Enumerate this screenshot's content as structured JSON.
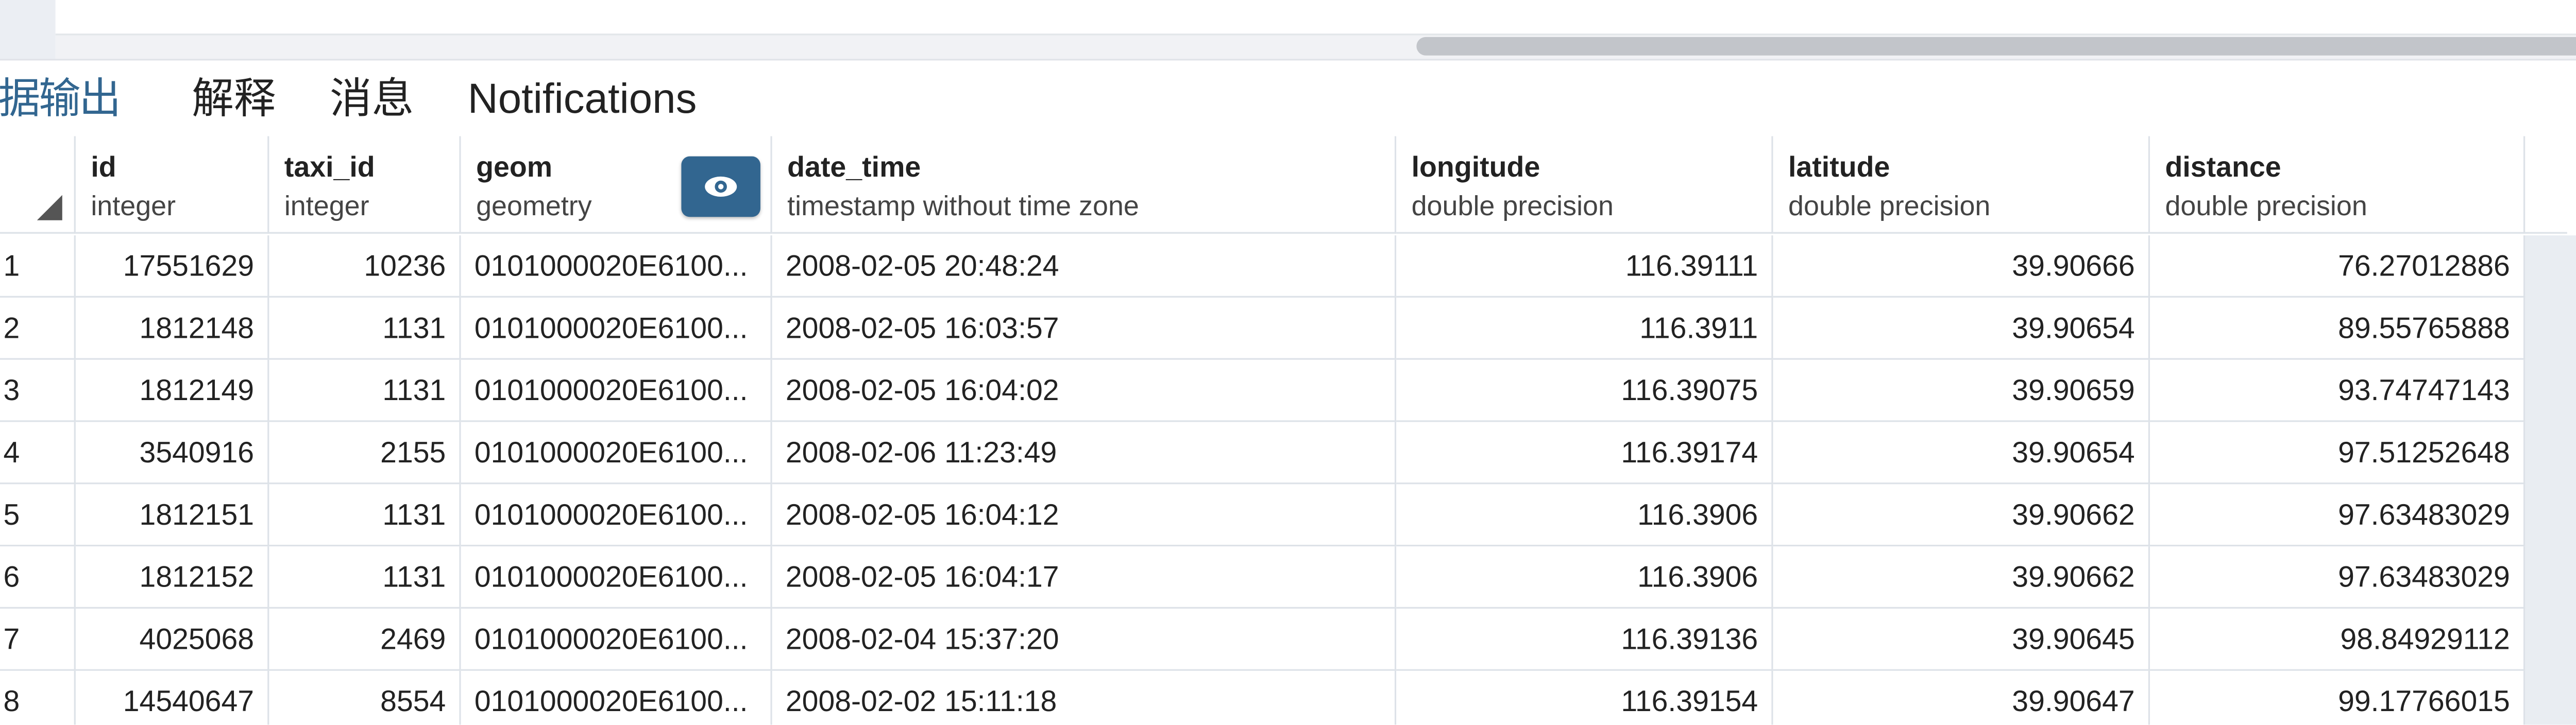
{
  "tabs": [
    {
      "label": "数据输出",
      "active": true
    },
    {
      "label": "解释",
      "active": false
    },
    {
      "label": "消息",
      "active": false
    },
    {
      "label": "Notifications",
      "active": false
    }
  ],
  "colors": {
    "accent": "#326690",
    "border": "#dde2e8",
    "sidebar_bg": "#e9edf2"
  },
  "view_button_icon": "eye-icon",
  "columns": [
    {
      "name": "id",
      "type": "integer"
    },
    {
      "name": "taxi_id",
      "type": "integer"
    },
    {
      "name": "geom",
      "type": "geometry"
    },
    {
      "name": "date_time",
      "type": "timestamp without time zone"
    },
    {
      "name": "longitude",
      "type": "double precision"
    },
    {
      "name": "latitude",
      "type": "double precision"
    },
    {
      "name": "distance",
      "type": "double precision"
    }
  ],
  "rows": [
    {
      "n": "1",
      "id": "17551629",
      "taxi_id": "10236",
      "geom": "0101000020E6100...",
      "date_time": "2008-02-05 20:48:24",
      "longitude": "116.39111",
      "latitude": "39.90666",
      "distance": "76.27012886"
    },
    {
      "n": "2",
      "id": "1812148",
      "taxi_id": "1131",
      "geom": "0101000020E6100...",
      "date_time": "2008-02-05 16:03:57",
      "longitude": "116.3911",
      "latitude": "39.90654",
      "distance": "89.55765888"
    },
    {
      "n": "3",
      "id": "1812149",
      "taxi_id": "1131",
      "geom": "0101000020E6100...",
      "date_time": "2008-02-05 16:04:02",
      "longitude": "116.39075",
      "latitude": "39.90659",
      "distance": "93.74747143"
    },
    {
      "n": "4",
      "id": "3540916",
      "taxi_id": "2155",
      "geom": "0101000020E6100...",
      "date_time": "2008-02-06 11:23:49",
      "longitude": "116.39174",
      "latitude": "39.90654",
      "distance": "97.51252648"
    },
    {
      "n": "5",
      "id": "1812151",
      "taxi_id": "1131",
      "geom": "0101000020E6100...",
      "date_time": "2008-02-05 16:04:12",
      "longitude": "116.3906",
      "latitude": "39.90662",
      "distance": "97.63483029"
    },
    {
      "n": "6",
      "id": "1812152",
      "taxi_id": "1131",
      "geom": "0101000020E6100...",
      "date_time": "2008-02-05 16:04:17",
      "longitude": "116.3906",
      "latitude": "39.90662",
      "distance": "97.63483029"
    },
    {
      "n": "7",
      "id": "4025068",
      "taxi_id": "2469",
      "geom": "0101000020E6100...",
      "date_time": "2008-02-04 15:37:20",
      "longitude": "116.39136",
      "latitude": "39.90645",
      "distance": "98.84929112"
    },
    {
      "n": "8",
      "id": "14540647",
      "taxi_id": "8554",
      "geom": "0101000020E6100...",
      "date_time": "2008-02-02 15:11:18",
      "longitude": "116.39154",
      "latitude": "39.90647",
      "distance": "99.17766015"
    }
  ]
}
